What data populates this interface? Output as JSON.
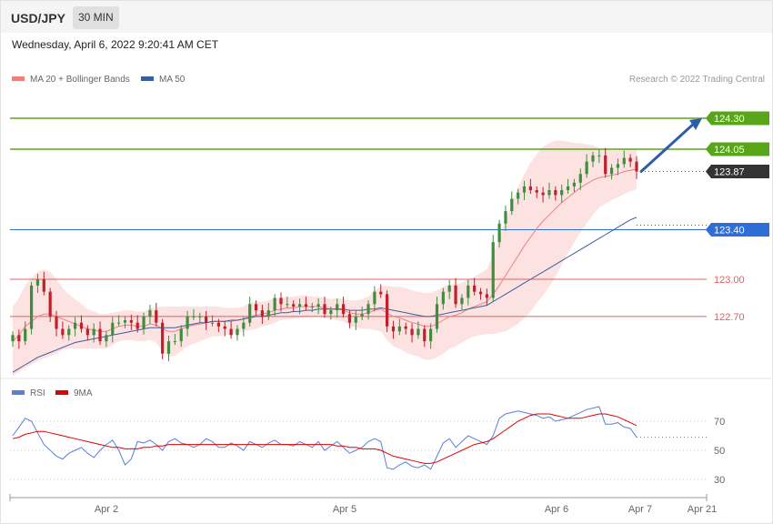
{
  "header": {
    "symbol": "USD/JPY",
    "timeframe": "30 MIN",
    "datetime": "Wednesday, April 6, 2022 9:20:41 AM CET"
  },
  "legend": {
    "main": [
      {
        "label": "MA 20 + Bollinger Bands",
        "color": "#f08080"
      },
      {
        "label": "MA 50",
        "color": "#3a5fa0"
      }
    ],
    "copyright": "Research © 2022 Trading Central",
    "rsi": [
      {
        "label": "RSI",
        "color": "#5b7fd6"
      },
      {
        "label": "9MA",
        "color": "#e00000"
      }
    ]
  },
  "colors": {
    "up_candle": "#3e8e3e",
    "down_candle": "#c0202a",
    "bollinger_fill": "#fde2e2",
    "resistance": "#58a51a",
    "support_blue": "#2f6ed6",
    "support_red": "#e06060",
    "last_price": "#333333",
    "arrow": "#2f5ea8"
  },
  "chart_data": [
    {
      "type": "candlestick",
      "title": "USD/JPY",
      "ylim": [
        122.2,
        124.52
      ],
      "levels": [
        {
          "value": 124.3,
          "label": "124.30",
          "kind": "resistance"
        },
        {
          "value": 124.05,
          "label": "124.05",
          "kind": "resistance"
        },
        {
          "value": 123.87,
          "label": "123.87",
          "kind": "last"
        },
        {
          "value": 123.4,
          "label": "123.40",
          "kind": "support"
        },
        {
          "value": 123.0,
          "label": "123.00",
          "kind": "support-red"
        },
        {
          "value": 122.7,
          "label": "122.70",
          "kind": "support-red"
        }
      ],
      "x_ticks": [
        "Apr 2",
        "Apr 5",
        "Apr 6",
        "Apr 7",
        "Apr 21"
      ],
      "annotations": [
        {
          "type": "arrow",
          "from": 123.87,
          "to": 124.3,
          "direction": "up"
        }
      ],
      "series": {
        "close": [
          122.55,
          122.5,
          122.6,
          122.95,
          123.0,
          122.9,
          122.7,
          122.6,
          122.55,
          122.6,
          122.65,
          122.6,
          122.55,
          122.6,
          122.5,
          122.55,
          122.65,
          122.65,
          122.67,
          122.65,
          122.6,
          122.7,
          122.75,
          122.65,
          122.4,
          122.5,
          122.5,
          122.6,
          122.7,
          122.7,
          122.7,
          122.65,
          122.65,
          122.62,
          122.6,
          122.55,
          122.6,
          122.65,
          122.8,
          122.75,
          122.7,
          122.75,
          122.85,
          122.8,
          122.8,
          122.78,
          122.8,
          122.78,
          122.78,
          122.8,
          122.72,
          122.75,
          122.8,
          122.72,
          122.65,
          122.7,
          122.72,
          122.8,
          122.9,
          122.88,
          122.62,
          122.58,
          122.62,
          122.6,
          122.55,
          122.6,
          122.5,
          122.6,
          122.8,
          122.9,
          122.95,
          122.8,
          122.85,
          122.95,
          122.9,
          122.88,
          122.85,
          123.3,
          123.45,
          123.55,
          123.65,
          123.7,
          123.75,
          123.72,
          123.7,
          123.68,
          123.72,
          123.68,
          123.72,
          123.75,
          123.78,
          123.85,
          123.95,
          124.0,
          124.0,
          123.85,
          123.9,
          123.93,
          123.98,
          123.95,
          123.87
        ],
        "ma20": [
          122.5,
          122.55,
          122.62,
          122.66,
          122.7,
          122.72,
          122.72,
          122.7,
          122.68,
          122.66,
          122.64,
          122.62,
          122.6,
          122.59,
          122.58,
          122.58,
          122.6,
          122.62,
          122.63,
          122.63,
          122.62,
          122.62,
          122.64,
          122.63,
          122.6,
          122.58,
          122.58,
          122.6,
          122.62,
          122.63,
          122.64,
          122.65,
          122.66,
          122.66,
          122.66,
          122.66,
          122.67,
          122.68,
          122.7,
          122.71,
          122.72,
          122.73,
          122.75,
          122.76,
          122.77,
          122.77,
          122.78,
          122.78,
          122.78,
          122.78,
          122.77,
          122.76,
          122.76,
          122.75,
          122.73,
          122.72,
          122.72,
          122.73,
          122.75,
          122.76,
          122.73,
          122.7,
          122.69,
          122.67,
          122.65,
          122.64,
          122.62,
          122.62,
          122.64,
          122.67,
          122.7,
          122.71,
          122.73,
          122.76,
          122.78,
          122.8,
          122.82,
          122.88,
          122.95,
          123.03,
          123.11,
          123.19,
          123.27,
          123.34,
          123.41,
          123.47,
          123.52,
          123.57,
          123.62,
          123.66,
          123.7,
          123.74,
          123.77,
          123.8,
          123.82,
          123.83,
          123.84,
          123.85,
          123.87,
          123.88,
          123.89
        ],
        "ma50": [
          122.25,
          122.28,
          122.31,
          122.34,
          122.37,
          122.39,
          122.41,
          122.43,
          122.45,
          122.47,
          122.49,
          122.5,
          122.51,
          122.52,
          122.53,
          122.54,
          122.55,
          122.56,
          122.57,
          122.58,
          122.59,
          122.6,
          122.61,
          122.61,
          122.61,
          122.61,
          122.61,
          122.62,
          122.63,
          122.64,
          122.65,
          122.65,
          122.66,
          122.66,
          122.66,
          122.67,
          122.67,
          122.68,
          122.69,
          122.7,
          122.7,
          122.71,
          122.72,
          122.73,
          122.73,
          122.74,
          122.74,
          122.75,
          122.75,
          122.76,
          122.76,
          122.76,
          122.76,
          122.76,
          122.75,
          122.75,
          122.75,
          122.76,
          122.76,
          122.77,
          122.76,
          122.75,
          122.74,
          122.73,
          122.72,
          122.71,
          122.7,
          122.7,
          122.71,
          122.72,
          122.73,
          122.74,
          122.75,
          122.76,
          122.77,
          122.78,
          122.79,
          122.82,
          122.85,
          122.88,
          122.91,
          122.94,
          122.97,
          123.0,
          123.03,
          123.06,
          123.09,
          123.12,
          123.15,
          123.18,
          123.21,
          123.24,
          123.27,
          123.3,
          123.33,
          123.36,
          123.39,
          123.42,
          123.45,
          123.48,
          123.5
        ],
        "bb_width": [
          0.28,
          0.3,
          0.33,
          0.35,
          0.36,
          0.36,
          0.34,
          0.3,
          0.25,
          0.22,
          0.2,
          0.18,
          0.16,
          0.15,
          0.14,
          0.14,
          0.13,
          0.12,
          0.12,
          0.12,
          0.12,
          0.12,
          0.13,
          0.14,
          0.18,
          0.2,
          0.2,
          0.18,
          0.16,
          0.15,
          0.14,
          0.13,
          0.12,
          0.12,
          0.11,
          0.11,
          0.1,
          0.1,
          0.11,
          0.11,
          0.1,
          0.1,
          0.1,
          0.09,
          0.09,
          0.09,
          0.09,
          0.09,
          0.08,
          0.08,
          0.08,
          0.08,
          0.09,
          0.09,
          0.1,
          0.11,
          0.12,
          0.13,
          0.16,
          0.18,
          0.22,
          0.24,
          0.25,
          0.26,
          0.26,
          0.26,
          0.27,
          0.27,
          0.27,
          0.27,
          0.26,
          0.25,
          0.24,
          0.24,
          0.24,
          0.25,
          0.26,
          0.32,
          0.38,
          0.45,
          0.5,
          0.55,
          0.58,
          0.6,
          0.6,
          0.6,
          0.58,
          0.55,
          0.5,
          0.45,
          0.4,
          0.36,
          0.32,
          0.28,
          0.24,
          0.22,
          0.2,
          0.19,
          0.18,
          0.17,
          0.16
        ]
      }
    },
    {
      "type": "line",
      "title": "",
      "ylim": [
        20,
        80
      ],
      "y_ticks": [
        30,
        50,
        70
      ],
      "series": [
        {
          "name": "RSI",
          "values": [
            60,
            66,
            72,
            70,
            62,
            54,
            50,
            46,
            44,
            48,
            50,
            52,
            48,
            45,
            50,
            54,
            57,
            50,
            40,
            44,
            56,
            55,
            57,
            54,
            50,
            56,
            58,
            55,
            54,
            52,
            54,
            58,
            56,
            52,
            52,
            55,
            53,
            50,
            56,
            54,
            52,
            55,
            57,
            54,
            54,
            53,
            56,
            54,
            52,
            56,
            50,
            53,
            56,
            52,
            48,
            50,
            52,
            56,
            58,
            56,
            38,
            37,
            40,
            42,
            39,
            38,
            40,
            37,
            46,
            55,
            58,
            52,
            56,
            60,
            58,
            56,
            54,
            60,
            72,
            75,
            76,
            77,
            76,
            75,
            74,
            72,
            73,
            70,
            71,
            72,
            74,
            76,
            78,
            79,
            80,
            68,
            68,
            69,
            66,
            65,
            59
          ]
        },
        {
          "name": "9MA",
          "values": [
            58,
            59,
            61,
            62,
            63,
            63,
            62,
            61,
            60,
            59,
            58,
            57,
            56,
            55,
            54,
            53,
            52,
            52,
            51,
            51,
            51,
            52,
            52,
            53,
            53,
            54,
            54,
            54,
            54,
            54,
            54,
            54,
            54,
            54,
            54,
            54,
            54,
            54,
            54,
            54,
            54,
            54,
            54,
            54,
            54,
            54,
            54,
            54,
            54,
            54,
            54,
            54,
            53,
            53,
            52,
            52,
            51,
            51,
            51,
            50,
            48,
            46,
            45,
            44,
            43,
            42,
            41,
            41,
            42,
            44,
            46,
            48,
            50,
            52,
            54,
            55,
            56,
            58,
            61,
            64,
            67,
            70,
            72,
            74,
            75,
            75,
            75,
            74,
            73,
            72,
            72,
            72,
            73,
            74,
            75,
            75,
            74,
            73,
            71,
            69,
            67
          ]
        }
      ],
      "reference_value": 59
    }
  ]
}
